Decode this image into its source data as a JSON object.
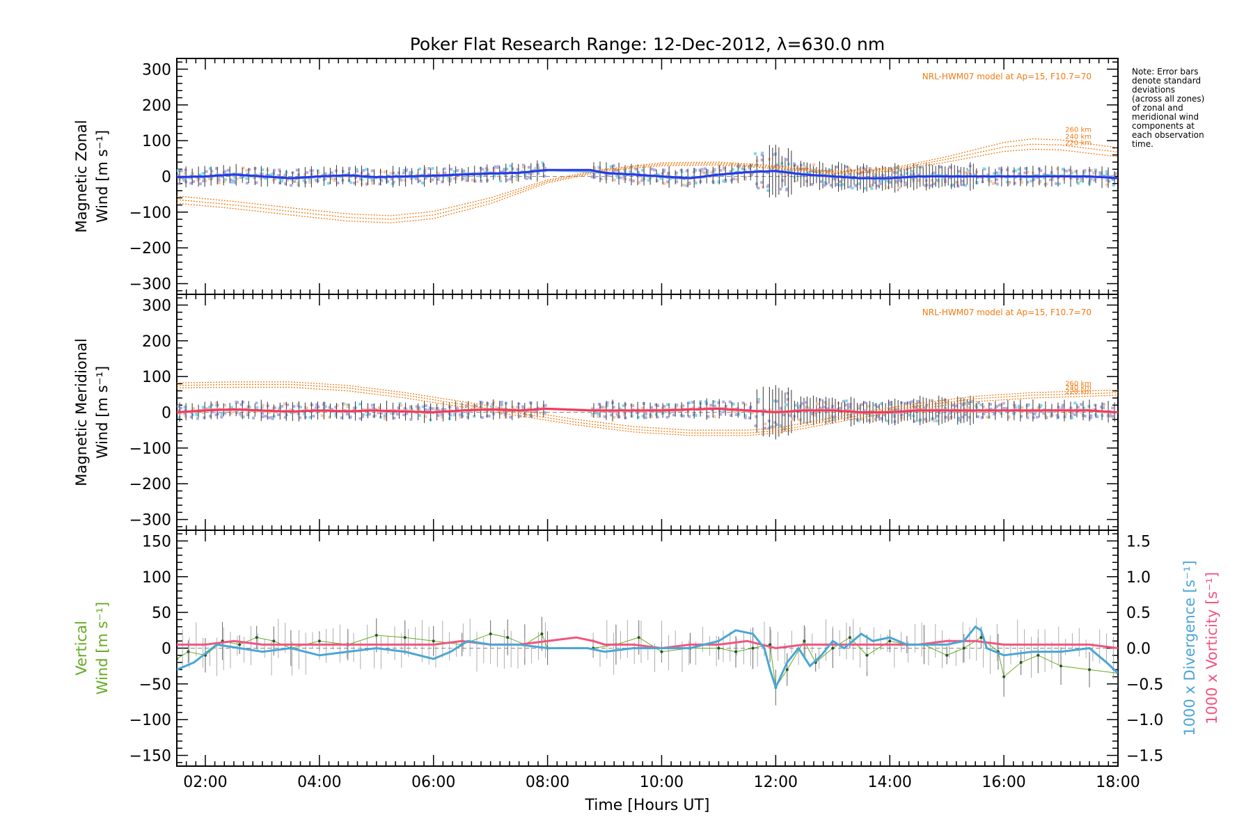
{
  "figure": {
    "title": "Poker Flat Research Range: 12-Dec-2012, λ=630.0 nm",
    "xlabel": "Time [Hours UT]",
    "note_lines": [
      "Note: Error bars",
      "denote standard",
      "deviations",
      "(across all zones)",
      "of zonal and",
      "meridional wind",
      "components at",
      "each observation",
      "time."
    ],
    "colors": {
      "axes": "#000000",
      "zonal": "#2b35e6",
      "meridional": "#f2395a",
      "model": "#f07a12",
      "zone_scatter": "#b0aee0",
      "cyan_zone": "#7fd9e8",
      "peach_zone": "#f7c7a3",
      "smooth_zonal": "#5ab3de",
      "smooth_meridional": "#f59aa6",
      "vertical": "#66aa22",
      "divergence": "#4aa6d6",
      "vorticity": "#f0557f",
      "errorbar": "#333333"
    }
  },
  "chart_data": [
    {
      "type": "line",
      "panel": "zonal",
      "ylabel_lines": [
        "Magnetic Zonal",
        "Wind [m s⁻¹]"
      ],
      "ylim": [
        -330,
        330
      ],
      "yticks": [
        -300,
        -200,
        -100,
        0,
        100,
        200,
        300
      ],
      "xlim": [
        1.5,
        18.0
      ],
      "xticks": [
        "02:00",
        "04:00",
        "06:00",
        "08:00",
        "10:00",
        "12:00",
        "14:00",
        "16:00",
        "18:00"
      ],
      "model_label": "NRL-HWM07 model at Ap=15, F10.7=70",
      "model_altitudes": [
        "260 km",
        "240 km",
        "220 km"
      ],
      "model_curves": {
        "x": [
          1.5,
          2.5,
          3.5,
          4.5,
          5.25,
          6.0,
          7.0,
          8.0,
          9.0,
          10.0,
          11.0,
          12.0,
          13.0,
          14.0,
          15.0,
          16.0,
          16.5,
          17.0,
          18.0
        ],
        "260 km": [
          -55,
          -70,
          -88,
          -105,
          -110,
          -98,
          -60,
          -10,
          20,
          38,
          40,
          30,
          15,
          22,
          55,
          95,
          105,
          102,
          80
        ],
        "240 km": [
          -65,
          -80,
          -98,
          -115,
          -120,
          -108,
          -68,
          -14,
          18,
          34,
          36,
          26,
          12,
          18,
          48,
          82,
          90,
          88,
          68
        ],
        "220 km": [
          -75,
          -90,
          -108,
          -125,
          -130,
          -118,
          -76,
          -18,
          15,
          30,
          32,
          22,
          8,
          14,
          40,
          70,
          76,
          74,
          55
        ]
      },
      "series": [
        {
          "name": "",
          "x": [
            1.5,
            2.0,
            2.5,
            3.0,
            3.5,
            4.0,
            4.5,
            5.0,
            5.5,
            6.0,
            6.5,
            7.0,
            7.5,
            8.0,
            8.75,
            9.0,
            9.5,
            10.0,
            10.5,
            11.0,
            11.5,
            12.0,
            12.5,
            13.0,
            13.5,
            14.0,
            14.5,
            15.0,
            15.5,
            16.0,
            16.5,
            17.0,
            17.5,
            18.0
          ],
          "values": [
            -2,
            0,
            5,
            0,
            -5,
            0,
            3,
            -2,
            0,
            2,
            5,
            8,
            10,
            18,
            18,
            10,
            5,
            0,
            -5,
            5,
            12,
            15,
            5,
            0,
            -5,
            -5,
            0,
            0,
            0,
            0,
            0,
            0,
            0,
            -5
          ]
        }
      ]
    },
    {
      "type": "line",
      "panel": "meridional",
      "ylabel_lines": [
        "Magnetic Meridional",
        "Wind [m s⁻¹]"
      ],
      "ylim": [
        -330,
        330
      ],
      "yticks": [
        -300,
        -200,
        -100,
        0,
        100,
        200,
        300
      ],
      "xlim": [
        1.5,
        18.0
      ],
      "model_label": "NRL-HWM07 model at Ap=15, F10.7=70",
      "model_altitudes": [
        "260 km",
        "240 km",
        "220 km"
      ],
      "model_curves": {
        "x": [
          1.5,
          2.5,
          3.5,
          4.5,
          5.5,
          6.5,
          7.5,
          8.5,
          9.5,
          10.5,
          11.5,
          12.0,
          12.5,
          13.5,
          14.5,
          15.5,
          16.5,
          17.5,
          18.0
        ],
        "260 km": [
          82,
          85,
          85,
          75,
          55,
          30,
          5,
          -20,
          -40,
          -50,
          -50,
          -45,
          -30,
          0,
          25,
          45,
          55,
          60,
          62
        ],
        "240 km": [
          75,
          78,
          78,
          68,
          48,
          22,
          -3,
          -28,
          -48,
          -58,
          -58,
          -52,
          -38,
          -8,
          18,
          38,
          48,
          52,
          55
        ],
        "220 km": [
          68,
          70,
          70,
          60,
          40,
          15,
          -10,
          -35,
          -55,
          -65,
          -65,
          -58,
          -45,
          -15,
          10,
          30,
          40,
          45,
          48
        ]
      },
      "series": [
        {
          "name": "",
          "x": [
            1.5,
            2.0,
            2.5,
            3.0,
            3.5,
            4.0,
            4.5,
            5.0,
            5.5,
            6.0,
            6.5,
            7.0,
            7.5,
            8.0,
            8.75,
            9.0,
            9.5,
            10.0,
            10.5,
            11.0,
            11.5,
            12.0,
            12.5,
            13.0,
            13.5,
            14.0,
            14.5,
            15.0,
            15.5,
            16.0,
            16.5,
            17.0,
            17.5,
            18.0
          ],
          "values": [
            0,
            5,
            8,
            5,
            2,
            5,
            3,
            5,
            2,
            0,
            5,
            8,
            5,
            10,
            5,
            5,
            5,
            5,
            8,
            10,
            5,
            0,
            5,
            5,
            0,
            0,
            5,
            5,
            5,
            5,
            5,
            5,
            5,
            0
          ]
        }
      ]
    },
    {
      "type": "line",
      "panel": "vertical",
      "ylabel_lines": [
        "Vertical",
        "Wind [m s⁻¹]"
      ],
      "ylim": [
        -165,
        165
      ],
      "yticks": [
        -150,
        -100,
        -50,
        0,
        50,
        100,
        150
      ],
      "y2lim": [
        -1.65,
        1.65
      ],
      "y2ticks": [
        "-1.5",
        "-1.0",
        "-0.5",
        "0.0",
        "0.5",
        "1.0",
        "1.5"
      ],
      "y2label_lines": [
        "1000 x Divergence [s⁻¹]",
        "1000 x Vorticity [s⁻¹]"
      ],
      "xlim": [
        1.5,
        18.0
      ],
      "series": [
        {
          "name": "Vertical",
          "x": [
            1.5,
            1.7,
            2.0,
            2.3,
            2.6,
            2.9,
            3.2,
            3.5,
            4.0,
            4.5,
            5.0,
            5.5,
            6.0,
            6.5,
            7.0,
            7.3,
            7.6,
            7.9,
            8.0,
            8.8,
            9.2,
            9.6,
            10.0,
            10.5,
            11.0,
            11.3,
            11.6,
            11.9,
            12.0,
            12.2,
            12.5,
            12.7,
            13.0,
            13.3,
            13.6,
            14.0,
            14.3,
            14.6,
            15.0,
            15.3,
            15.6,
            15.9,
            16.0,
            16.3,
            16.6,
            17.0,
            17.5,
            18.0
          ],
          "values": [
            -15,
            -5,
            -10,
            10,
            5,
            15,
            10,
            0,
            10,
            5,
            18,
            15,
            10,
            5,
            20,
            15,
            5,
            20,
            0,
            0,
            5,
            15,
            -5,
            0,
            0,
            -5,
            0,
            5,
            -55,
            -30,
            10,
            -20,
            0,
            15,
            -10,
            10,
            5,
            5,
            -10,
            0,
            15,
            -5,
            -40,
            -20,
            -10,
            -25,
            -30,
            -35
          ]
        },
        {
          "name": "",
          "x": [
            1.5,
            1.8,
            2.2,
            2.6,
            3.0,
            3.5,
            4.0,
            4.5,
            5.0,
            5.5,
            6.0,
            6.3,
            6.6,
            7.0,
            7.5,
            8.0,
            8.7,
            9.0,
            9.5,
            10.0,
            10.5,
            11.0,
            11.3,
            11.6,
            11.8,
            11.9,
            12.0,
            12.2,
            12.4,
            12.6,
            12.8,
            13.0,
            13.2,
            13.5,
            13.7,
            14.0,
            14.3,
            14.6,
            15.0,
            15.3,
            15.5,
            15.6,
            15.7,
            16.0,
            16.5,
            17.0,
            17.5,
            17.8,
            18.0
          ],
          "values": [
            -0.3,
            -0.2,
            0.05,
            0.0,
            -0.05,
            0.0,
            -0.1,
            -0.05,
            0.0,
            -0.05,
            -0.15,
            -0.05,
            0.1,
            0.05,
            0.05,
            0.0,
            0.0,
            -0.05,
            0.0,
            0.0,
            0.0,
            0.1,
            0.25,
            0.2,
            0.0,
            -0.3,
            -0.55,
            -0.2,
            0.0,
            -0.25,
            -0.1,
            0.1,
            0.0,
            0.2,
            0.1,
            0.15,
            0.05,
            0.05,
            0.05,
            0.1,
            0.3,
            0.25,
            0.0,
            -0.1,
            -0.05,
            -0.05,
            0.0,
            -0.2,
            -0.35
          ]
        },
        {
          "name": "",
          "x": [
            1.5,
            2.0,
            2.5,
            3.0,
            3.5,
            4.0,
            4.5,
            5.0,
            5.5,
            6.0,
            6.5,
            7.0,
            7.5,
            8.0,
            8.5,
            8.8,
            9.0,
            9.5,
            10.0,
            10.5,
            11.0,
            11.5,
            12.0,
            12.5,
            13.0,
            13.5,
            14.0,
            14.5,
            15.0,
            15.5,
            16.0,
            16.5,
            17.0,
            17.5,
            18.0
          ],
          "values": [
            0.05,
            0.05,
            0.1,
            0.05,
            0.05,
            0.05,
            0.05,
            0.05,
            0.05,
            0.05,
            0.1,
            0.05,
            0.05,
            0.1,
            0.15,
            0.1,
            0.05,
            0.05,
            0.0,
            0.05,
            0.05,
            0.1,
            0.0,
            0.05,
            0.05,
            0.05,
            0.05,
            0.05,
            0.1,
            0.1,
            0.05,
            0.05,
            0.05,
            0.05,
            0.0
          ]
        }
      ]
    }
  ]
}
